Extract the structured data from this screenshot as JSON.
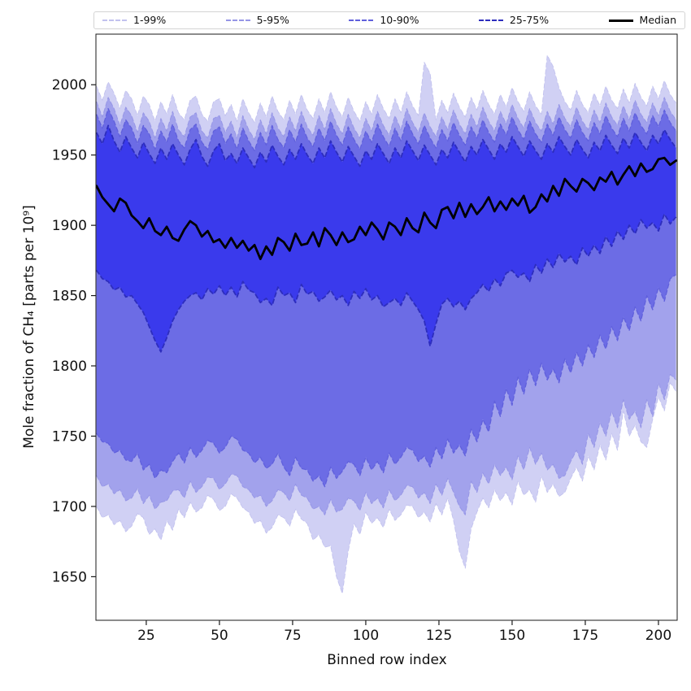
{
  "chart_data": {
    "type": "area",
    "title": "",
    "xlabel": "Binned row index",
    "ylabel": "Mole fraction of CH₄ [parts per 10⁹]",
    "xlim": [
      7.8,
      206.4
    ],
    "ylim": [
      1619,
      2036
    ],
    "xticks": [
      25,
      50,
      75,
      100,
      125,
      150,
      175,
      200
    ],
    "yticks": [
      1650,
      1700,
      1750,
      1800,
      1850,
      1900,
      1950,
      2000
    ],
    "grid": false,
    "legend_position": "top",
    "x": [
      8,
      10,
      12,
      14,
      16,
      18,
      20,
      22,
      24,
      26,
      28,
      30,
      32,
      34,
      36,
      38,
      40,
      42,
      44,
      46,
      48,
      50,
      52,
      54,
      56,
      58,
      60,
      62,
      64,
      66,
      68,
      70,
      72,
      74,
      76,
      78,
      80,
      82,
      84,
      86,
      88,
      90,
      92,
      94,
      96,
      98,
      100,
      102,
      104,
      106,
      108,
      110,
      112,
      114,
      116,
      118,
      120,
      122,
      124,
      126,
      128,
      130,
      132,
      134,
      136,
      138,
      140,
      142,
      144,
      146,
      148,
      150,
      152,
      154,
      156,
      158,
      160,
      162,
      164,
      166,
      168,
      170,
      172,
      174,
      176,
      178,
      180,
      182,
      184,
      186,
      188,
      190,
      192,
      194,
      196,
      198,
      200,
      202,
      204,
      206
    ],
    "bands": [
      {
        "label": "1-99%",
        "lo": "p01",
        "hi": "p99",
        "fill": "#d0d0f4",
        "line": "#c2c2ee",
        "line_width": 0.9
      },
      {
        "label": "5-95%",
        "lo": "p05",
        "hi": "p95",
        "fill": "#a2a2ec",
        "line": "#9696e6",
        "line_width": 1.0
      },
      {
        "label": "10-90%",
        "lo": "p10",
        "hi": "p90",
        "fill": "#6c6ce5",
        "line": "#6060dc",
        "line_width": 1.3
      },
      {
        "label": "25-75%",
        "lo": "p25",
        "hi": "p75",
        "fill": "#3a3aec",
        "line": "#2d2dbd",
        "line_width": 1.8
      }
    ],
    "median": {
      "label": "Median",
      "color": "#000000",
      "line_width": 2.8
    },
    "series": {
      "p01": [
        1700,
        1692,
        1694,
        1687,
        1690,
        1682,
        1686,
        1695,
        1692,
        1680,
        1684,
        1676,
        1690,
        1683,
        1698,
        1692,
        1703,
        1696,
        1699,
        1708,
        1705,
        1697,
        1700,
        1709,
        1706,
        1699,
        1696,
        1688,
        1690,
        1681,
        1685,
        1694,
        1692,
        1686,
        1698,
        1691,
        1688,
        1676,
        1680,
        1671,
        1672,
        1650,
        1638,
        1668,
        1688,
        1680,
        1696,
        1688,
        1692,
        1685,
        1698,
        1690,
        1694,
        1701,
        1700,
        1692,
        1696,
        1689,
        1702,
        1694,
        1706,
        1690,
        1668,
        1656,
        1684,
        1696,
        1706,
        1699,
        1712,
        1704,
        1710,
        1701,
        1718,
        1708,
        1712,
        1703,
        1722,
        1710,
        1716,
        1707,
        1710,
        1720,
        1728,
        1718,
        1736,
        1726,
        1744,
        1733,
        1752,
        1740,
        1768,
        1750,
        1758,
        1746,
        1742,
        1762,
        1778,
        1768,
        1788,
        1782
      ],
      "p05": [
        1722,
        1714,
        1716,
        1709,
        1712,
        1704,
        1706,
        1713,
        1702,
        1708,
        1698,
        1703,
        1704,
        1711,
        1712,
        1706,
        1718,
        1710,
        1714,
        1721,
        1720,
        1712,
        1716,
        1723,
        1722,
        1714,
        1712,
        1706,
        1708,
        1700,
        1704,
        1712,
        1710,
        1704,
        1716,
        1708,
        1706,
        1698,
        1700,
        1694,
        1705,
        1696,
        1698,
        1706,
        1704,
        1697,
        1710,
        1702,
        1706,
        1699,
        1712,
        1704,
        1708,
        1715,
        1714,
        1706,
        1710,
        1702,
        1716,
        1708,
        1720,
        1710,
        1700,
        1694,
        1718,
        1710,
        1724,
        1716,
        1730,
        1722,
        1728,
        1719,
        1736,
        1726,
        1742,
        1730,
        1738,
        1726,
        1730,
        1720,
        1722,
        1732,
        1740,
        1730,
        1752,
        1742,
        1760,
        1750,
        1768,
        1756,
        1776,
        1762,
        1768,
        1756,
        1776,
        1764,
        1788,
        1776,
        1794,
        1790
      ],
      "p10": [
        1752,
        1746,
        1745,
        1738,
        1740,
        1733,
        1732,
        1738,
        1726,
        1730,
        1720,
        1726,
        1724,
        1732,
        1738,
        1731,
        1742,
        1735,
        1740,
        1747,
        1745,
        1738,
        1742,
        1750,
        1748,
        1740,
        1738,
        1731,
        1735,
        1727,
        1730,
        1738,
        1728,
        1722,
        1735,
        1727,
        1726,
        1718,
        1722,
        1714,
        1728,
        1720,
        1725,
        1732,
        1730,
        1722,
        1735,
        1726,
        1732,
        1724,
        1738,
        1730,
        1735,
        1742,
        1740,
        1732,
        1736,
        1728,
        1742,
        1734,
        1748,
        1738,
        1744,
        1736,
        1755,
        1746,
        1762,
        1753,
        1775,
        1764,
        1784,
        1772,
        1792,
        1780,
        1798,
        1786,
        1802,
        1790,
        1798,
        1788,
        1805,
        1795,
        1810,
        1800,
        1815,
        1806,
        1822,
        1812,
        1828,
        1818,
        1835,
        1825,
        1842,
        1832,
        1850,
        1840,
        1856,
        1846,
        1862,
        1865
      ],
      "p25": [
        1868,
        1862,
        1860,
        1854,
        1856,
        1849,
        1850,
        1844,
        1838,
        1828,
        1818,
        1810,
        1820,
        1832,
        1840,
        1846,
        1850,
        1852,
        1847,
        1855,
        1851,
        1857,
        1850,
        1856,
        1849,
        1860,
        1854,
        1852,
        1845,
        1848,
        1843,
        1856,
        1850,
        1852,
        1845,
        1858,
        1851,
        1853,
        1846,
        1849,
        1854,
        1847,
        1850,
        1843,
        1853,
        1848,
        1855,
        1847,
        1850,
        1842,
        1845,
        1848,
        1843,
        1852,
        1846,
        1840,
        1832,
        1814,
        1830,
        1844,
        1848,
        1842,
        1846,
        1840,
        1848,
        1852,
        1858,
        1853,
        1862,
        1857,
        1866,
        1868,
        1863,
        1866,
        1860,
        1872,
        1866,
        1876,
        1870,
        1880,
        1874,
        1878,
        1872,
        1884,
        1878,
        1886,
        1880,
        1892,
        1885,
        1896,
        1890,
        1900,
        1894,
        1904,
        1898,
        1902,
        1896,
        1908,
        1901,
        1906
      ],
      "median": [
        1928,
        1920,
        1915,
        1910,
        1919,
        1916,
        1907,
        1903,
        1898,
        1905,
        1896,
        1893,
        1899,
        1891,
        1889,
        1897,
        1903,
        1900,
        1892,
        1896,
        1888,
        1890,
        1884,
        1891,
        1884,
        1889,
        1882,
        1886,
        1876,
        1885,
        1879,
        1891,
        1888,
        1882,
        1894,
        1886,
        1887,
        1895,
        1885,
        1898,
        1893,
        1886,
        1895,
        1888,
        1890,
        1899,
        1893,
        1902,
        1897,
        1890,
        1902,
        1899,
        1893,
        1905,
        1898,
        1895,
        1909,
        1902,
        1898,
        1911,
        1913,
        1905,
        1916,
        1906,
        1915,
        1908,
        1913,
        1920,
        1910,
        1917,
        1911,
        1919,
        1914,
        1921,
        1909,
        1913,
        1922,
        1917,
        1928,
        1921,
        1933,
        1928,
        1924,
        1933,
        1930,
        1925,
        1934,
        1931,
        1938,
        1929,
        1936,
        1942,
        1935,
        1944,
        1938,
        1940,
        1947,
        1948,
        1943,
        1946
      ],
      "p75": [
        1966,
        1958,
        1971,
        1960,
        1952,
        1963,
        1955,
        1948,
        1959,
        1951,
        1944,
        1955,
        1947,
        1958,
        1950,
        1943,
        1954,
        1961,
        1949,
        1942,
        1953,
        1958,
        1946,
        1951,
        1944,
        1955,
        1948,
        1941,
        1952,
        1945,
        1957,
        1949,
        1943,
        1954,
        1947,
        1958,
        1950,
        1944,
        1955,
        1948,
        1960,
        1952,
        1945,
        1956,
        1949,
        1942,
        1953,
        1947,
        1958,
        1951,
        1944,
        1955,
        1948,
        1960,
        1953,
        1946,
        1957,
        1950,
        1943,
        1954,
        1948,
        1959,
        1952,
        1945,
        1956,
        1950,
        1961,
        1954,
        1947,
        1958,
        1952,
        1963,
        1956,
        1949,
        1960,
        1953,
        1947,
        1958,
        1952,
        1963,
        1956,
        1950,
        1961,
        1954,
        1948,
        1959,
        1953,
        1964,
        1957,
        1951,
        1962,
        1955,
        1966,
        1959,
        1953,
        1964,
        1958,
        1968,
        1961,
        1955
      ],
      "p90": [
        1979,
        1969,
        1983,
        1974,
        1963,
        1975,
        1969,
        1958,
        1971,
        1965,
        1954,
        1967,
        1959,
        1972,
        1960,
        1955,
        1968,
        1972,
        1959,
        1954,
        1967,
        1970,
        1958,
        1965,
        1954,
        1969,
        1960,
        1953,
        1966,
        1957,
        1971,
        1961,
        1955,
        1968,
        1959,
        1972,
        1962,
        1956,
        1969,
        1960,
        1974,
        1964,
        1957,
        1970,
        1961,
        1954,
        1967,
        1959,
        1972,
        1963,
        1956,
        1969,
        1960,
        1974,
        1965,
        1958,
        1971,
        1962,
        1955,
        1968,
        1960,
        1973,
        1964,
        1957,
        1970,
        1962,
        1975,
        1966,
        1959,
        1972,
        1964,
        1977,
        1968,
        1961,
        1974,
        1965,
        1959,
        1972,
        1964,
        1977,
        1968,
        1962,
        1975,
        1966,
        1960,
        1973,
        1965,
        1978,
        1969,
        1963,
        1976,
        1967,
        1980,
        1971,
        1965,
        1978,
        1970,
        1982,
        1973,
        1967
      ],
      "p95": [
        1988,
        1977,
        1991,
        1983,
        1971,
        1984,
        1978,
        1966,
        1980,
        1974,
        1962,
        1976,
        1967,
        1981,
        1968,
        1963,
        1977,
        1980,
        1967,
        1962,
        1976,
        1978,
        1966,
        1974,
        1962,
        1978,
        1968,
        1961,
        1975,
        1965,
        1980,
        1969,
        1963,
        1977,
        1967,
        1981,
        1970,
        1964,
        1978,
        1968,
        1983,
        1972,
        1965,
        1979,
        1969,
        1962,
        1976,
        1967,
        1981,
        1971,
        1964,
        1978,
        1968,
        1983,
        1973,
        1966,
        1980,
        1970,
        1963,
        1977,
        1968,
        1982,
        1972,
        1965,
        1979,
        1970,
        1984,
        1974,
        1967,
        1981,
        1972,
        1986,
        1976,
        1969,
        1983,
        1973,
        1967,
        1981,
        1972,
        1986,
        1976,
        1970,
        1984,
        1974,
        1968,
        1982,
        1973,
        1987,
        1977,
        1971,
        1985,
        1975,
        1989,
        1979,
        1973,
        1987,
        1978,
        1991,
        1981,
        1975
      ],
      "p99": [
        1999,
        1989,
        2002,
        1994,
        1983,
        1996,
        1990,
        1978,
        1992,
        1986,
        1974,
        1988,
        1979,
        1993,
        1980,
        1975,
        1989,
        1992,
        1979,
        1974,
        1988,
        1990,
        1978,
        1986,
        1974,
        1990,
        1980,
        1973,
        1987,
        1977,
        1992,
        1981,
        1975,
        1989,
        1979,
        1993,
        1982,
        1976,
        1990,
        1980,
        1995,
        1984,
        1977,
        1991,
        1981,
        1974,
        1988,
        1979,
        1993,
        1983,
        1976,
        1990,
        1980,
        1995,
        1985,
        1978,
        2016,
        2008,
        1975,
        1989,
        1980,
        1994,
        1984,
        1977,
        1991,
        1982,
        1996,
        1986,
        1979,
        1993,
        1984,
        1998,
        1988,
        1981,
        1995,
        1985,
        1979,
        2021,
        2013,
        1998,
        1988,
        1982,
        1996,
        1986,
        1980,
        1994,
        1985,
        1999,
        1989,
        1983,
        1997,
        1987,
        2001,
        1991,
        1985,
        1999,
        1990,
        2003,
        1993,
        1987
      ]
    }
  }
}
